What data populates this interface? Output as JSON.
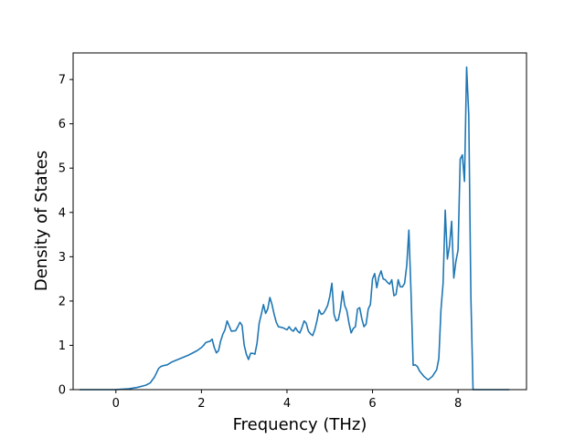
{
  "chart_data": {
    "type": "line",
    "title": "",
    "xlabel": "Frequency (THz)",
    "ylabel": "Density of States",
    "xlim": [
      -1.0,
      9.6
    ],
    "ylim": [
      0,
      7.6
    ],
    "grid": false,
    "line_color": "#1f77b4",
    "xticks": [
      0,
      2,
      4,
      6,
      8
    ],
    "yticks": [
      0,
      1,
      2,
      3,
      4,
      5,
      6,
      7
    ],
    "series": [
      {
        "name": "",
        "x": [
          -0.85,
          -0.5,
          0.0,
          0.3,
          0.5,
          0.7,
          0.8,
          0.9,
          0.95,
          1.0,
          1.05,
          1.1,
          1.2,
          1.3,
          1.5,
          1.7,
          1.9,
          2.0,
          2.05,
          2.1,
          2.15,
          2.2,
          2.25,
          2.3,
          2.35,
          2.4,
          2.45,
          2.5,
          2.55,
          2.6,
          2.7,
          2.8,
          2.85,
          2.9,
          2.95,
          3.0,
          3.05,
          3.1,
          3.15,
          3.2,
          3.25,
          3.3,
          3.35,
          3.4,
          3.45,
          3.5,
          3.55,
          3.6,
          3.65,
          3.7,
          3.75,
          3.8,
          3.9,
          4.0,
          4.05,
          4.1,
          4.15,
          4.2,
          4.25,
          4.3,
          4.35,
          4.4,
          4.45,
          4.5,
          4.55,
          4.6,
          4.65,
          4.7,
          4.75,
          4.8,
          4.85,
          4.9,
          4.95,
          5.0,
          5.05,
          5.1,
          5.15,
          5.2,
          5.25,
          5.3,
          5.35,
          5.4,
          5.45,
          5.5,
          5.55,
          5.6,
          5.65,
          5.7,
          5.75,
          5.8,
          5.85,
          5.9,
          5.95,
          6.0,
          6.05,
          6.1,
          6.15,
          6.2,
          6.25,
          6.3,
          6.35,
          6.4,
          6.45,
          6.5,
          6.55,
          6.6,
          6.65,
          6.7,
          6.75,
          6.8,
          6.85,
          6.9,
          6.95,
          7.0,
          7.05,
          7.1,
          7.2,
          7.3,
          7.4,
          7.5,
          7.55,
          7.6,
          7.65,
          7.7,
          7.75,
          7.8,
          7.85,
          7.9,
          7.95,
          8.0,
          8.05,
          8.1,
          8.15,
          8.2,
          8.25,
          8.3,
          8.35,
          8.4,
          8.5,
          9.2
        ],
        "y": [
          0.0,
          0.0,
          0.0,
          0.02,
          0.05,
          0.1,
          0.15,
          0.28,
          0.38,
          0.48,
          0.52,
          0.54,
          0.56,
          0.62,
          0.7,
          0.78,
          0.88,
          0.95,
          1.0,
          1.06,
          1.08,
          1.09,
          1.14,
          0.95,
          0.83,
          0.88,
          1.1,
          1.25,
          1.35,
          1.55,
          1.32,
          1.33,
          1.42,
          1.52,
          1.45,
          1.0,
          0.8,
          0.68,
          0.82,
          0.82,
          0.8,
          1.05,
          1.5,
          1.7,
          1.92,
          1.72,
          1.82,
          2.08,
          1.92,
          1.7,
          1.52,
          1.42,
          1.4,
          1.35,
          1.42,
          1.35,
          1.32,
          1.4,
          1.32,
          1.28,
          1.4,
          1.55,
          1.5,
          1.32,
          1.26,
          1.22,
          1.35,
          1.55,
          1.8,
          1.7,
          1.72,
          1.8,
          1.9,
          2.1,
          2.4,
          1.7,
          1.55,
          1.58,
          1.82,
          2.22,
          1.9,
          1.78,
          1.5,
          1.28,
          1.38,
          1.42,
          1.82,
          1.85,
          1.6,
          1.42,
          1.48,
          1.82,
          1.92,
          2.5,
          2.62,
          2.3,
          2.55,
          2.68,
          2.5,
          2.48,
          2.42,
          2.38,
          2.48,
          2.12,
          2.15,
          2.48,
          2.32,
          2.32,
          2.4,
          2.8,
          3.6,
          2.2,
          0.55,
          0.56,
          0.52,
          0.42,
          0.3,
          0.22,
          0.3,
          0.45,
          0.7,
          1.8,
          2.4,
          4.05,
          2.95,
          3.25,
          3.8,
          2.52,
          2.9,
          3.15,
          5.2,
          5.3,
          4.7,
          7.28,
          6.2,
          2.1,
          0.0,
          0.0,
          0.0,
          0.0
        ]
      }
    ]
  }
}
